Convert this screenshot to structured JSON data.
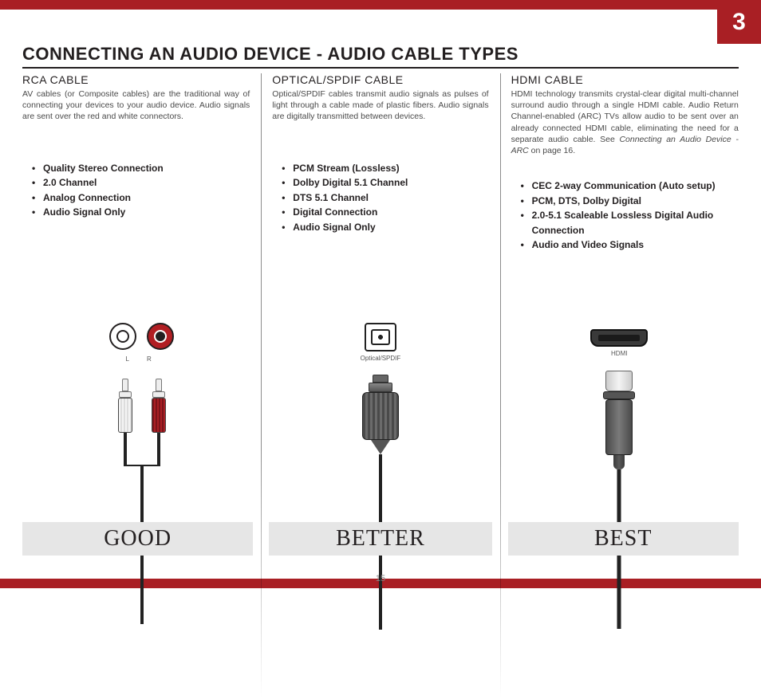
{
  "chapter_number": "3",
  "page_number": "15",
  "main_title": "CONNECTING AN AUDIO DEVICE - AUDIO CABLE TYPES",
  "colors": {
    "accent_red": "#a91f24",
    "text": "#231f20",
    "rating_bg": "#e6e6e6"
  },
  "columns": [
    {
      "id": "rca",
      "title": "RCA CABLE",
      "desc": "AV cables (or Composite cables) are the traditional way of connecting your devices to your audio device. Audio signals are sent over the red and white connectors.",
      "bullets": [
        "Quality Stereo Connection",
        "2.0 Channel",
        "Analog Connection",
        "Audio Signal Only"
      ],
      "port_labels": {
        "left": "L",
        "right": "R"
      },
      "rating": "GOOD"
    },
    {
      "id": "optical",
      "title": "OPTICAL/SPDIF CABLE",
      "desc": "Optical/SPDIF cables transmit audio signals as pulses of light through a cable made of plastic fibers. Audio signals are digitally transmitted between devices.",
      "bullets": [
        "PCM Stream (Lossless)",
        "Dolby Digital 5.1 Channel",
        "DTS 5.1 Channel",
        "Digital Connection",
        "Audio Signal Only"
      ],
      "port_label": "Optical/SPDIF",
      "rating": "BETTER"
    },
    {
      "id": "hdmi",
      "title": "HDMI CABLE",
      "desc_html": "HDMI technology transmits crystal-clear digital multi-channel surround audio through a single HDMI cable. Audio Return Channel-enabled (ARC) TVs allow audio to be sent over an already connected HDMI cable, eliminating the need for a separate audio cable. See <em>Connecting an Audio Device - ARC</em> on page 16.",
      "bullets": [
        "CEC 2-way Communication (Auto setup)",
        "PCM, DTS, Dolby Digital",
        "2.0-5.1 Scaleable Lossless Digital Audio Connection",
        "Audio and Video Signals"
      ],
      "port_label": "HDMI",
      "rating": "BEST"
    }
  ]
}
